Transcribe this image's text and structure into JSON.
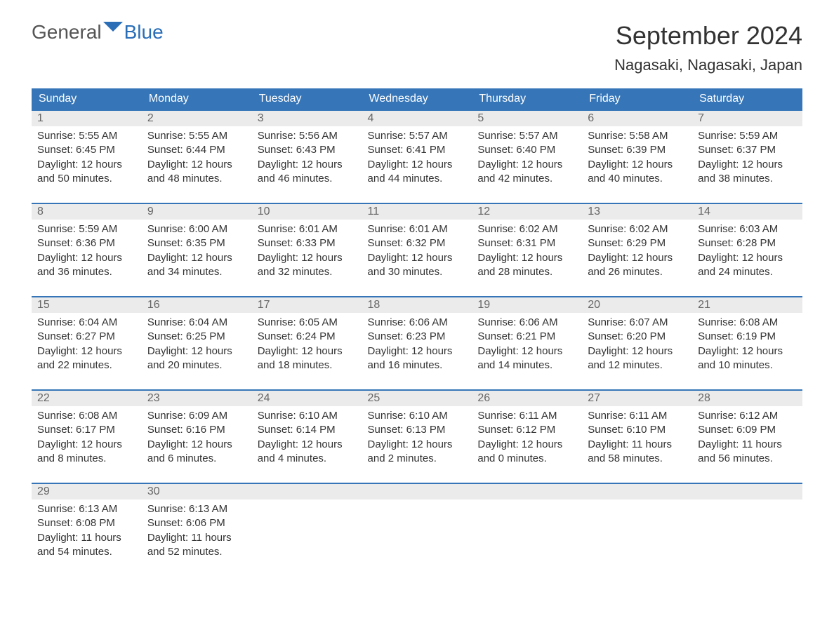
{
  "brand": {
    "t1": "General",
    "t2": "Blue",
    "icon_color": "#2a6eb8"
  },
  "title": "September 2024",
  "location": "Nagasaki, Nagasaki, Japan",
  "colors": {
    "header_bg": "#3676b8",
    "header_text": "#ffffff",
    "daynum_bg": "#ebebeb",
    "daynum_border": "#3676b8",
    "text": "#333333",
    "daynum_text": "#666666"
  },
  "day_headers": [
    "Sunday",
    "Monday",
    "Tuesday",
    "Wednesday",
    "Thursday",
    "Friday",
    "Saturday"
  ],
  "weeks": [
    [
      {
        "n": "1",
        "sr": "5:55 AM",
        "ss": "6:45 PM",
        "dh": "12",
        "dm": "50"
      },
      {
        "n": "2",
        "sr": "5:55 AM",
        "ss": "6:44 PM",
        "dh": "12",
        "dm": "48"
      },
      {
        "n": "3",
        "sr": "5:56 AM",
        "ss": "6:43 PM",
        "dh": "12",
        "dm": "46"
      },
      {
        "n": "4",
        "sr": "5:57 AM",
        "ss": "6:41 PM",
        "dh": "12",
        "dm": "44"
      },
      {
        "n": "5",
        "sr": "5:57 AM",
        "ss": "6:40 PM",
        "dh": "12",
        "dm": "42"
      },
      {
        "n": "6",
        "sr": "5:58 AM",
        "ss": "6:39 PM",
        "dh": "12",
        "dm": "40"
      },
      {
        "n": "7",
        "sr": "5:59 AM",
        "ss": "6:37 PM",
        "dh": "12",
        "dm": "38"
      }
    ],
    [
      {
        "n": "8",
        "sr": "5:59 AM",
        "ss": "6:36 PM",
        "dh": "12",
        "dm": "36"
      },
      {
        "n": "9",
        "sr": "6:00 AM",
        "ss": "6:35 PM",
        "dh": "12",
        "dm": "34"
      },
      {
        "n": "10",
        "sr": "6:01 AM",
        "ss": "6:33 PM",
        "dh": "12",
        "dm": "32"
      },
      {
        "n": "11",
        "sr": "6:01 AM",
        "ss": "6:32 PM",
        "dh": "12",
        "dm": "30"
      },
      {
        "n": "12",
        "sr": "6:02 AM",
        "ss": "6:31 PM",
        "dh": "12",
        "dm": "28"
      },
      {
        "n": "13",
        "sr": "6:02 AM",
        "ss": "6:29 PM",
        "dh": "12",
        "dm": "26"
      },
      {
        "n": "14",
        "sr": "6:03 AM",
        "ss": "6:28 PM",
        "dh": "12",
        "dm": "24"
      }
    ],
    [
      {
        "n": "15",
        "sr": "6:04 AM",
        "ss": "6:27 PM",
        "dh": "12",
        "dm": "22"
      },
      {
        "n": "16",
        "sr": "6:04 AM",
        "ss": "6:25 PM",
        "dh": "12",
        "dm": "20"
      },
      {
        "n": "17",
        "sr": "6:05 AM",
        "ss": "6:24 PM",
        "dh": "12",
        "dm": "18"
      },
      {
        "n": "18",
        "sr": "6:06 AM",
        "ss": "6:23 PM",
        "dh": "12",
        "dm": "16"
      },
      {
        "n": "19",
        "sr": "6:06 AM",
        "ss": "6:21 PM",
        "dh": "12",
        "dm": "14"
      },
      {
        "n": "20",
        "sr": "6:07 AM",
        "ss": "6:20 PM",
        "dh": "12",
        "dm": "12"
      },
      {
        "n": "21",
        "sr": "6:08 AM",
        "ss": "6:19 PM",
        "dh": "12",
        "dm": "10"
      }
    ],
    [
      {
        "n": "22",
        "sr": "6:08 AM",
        "ss": "6:17 PM",
        "dh": "12",
        "dm": "8"
      },
      {
        "n": "23",
        "sr": "6:09 AM",
        "ss": "6:16 PM",
        "dh": "12",
        "dm": "6"
      },
      {
        "n": "24",
        "sr": "6:10 AM",
        "ss": "6:14 PM",
        "dh": "12",
        "dm": "4"
      },
      {
        "n": "25",
        "sr": "6:10 AM",
        "ss": "6:13 PM",
        "dh": "12",
        "dm": "2"
      },
      {
        "n": "26",
        "sr": "6:11 AM",
        "ss": "6:12 PM",
        "dh": "12",
        "dm": "0"
      },
      {
        "n": "27",
        "sr": "6:11 AM",
        "ss": "6:10 PM",
        "dh": "11",
        "dm": "58"
      },
      {
        "n": "28",
        "sr": "6:12 AM",
        "ss": "6:09 PM",
        "dh": "11",
        "dm": "56"
      }
    ],
    [
      {
        "n": "29",
        "sr": "6:13 AM",
        "ss": "6:08 PM",
        "dh": "11",
        "dm": "54"
      },
      {
        "n": "30",
        "sr": "6:13 AM",
        "ss": "6:06 PM",
        "dh": "11",
        "dm": "52"
      },
      null,
      null,
      null,
      null,
      null
    ]
  ],
  "labels": {
    "sunrise": "Sunrise: ",
    "sunset": "Sunset: ",
    "daylight1": "Daylight: ",
    "daylight2": " hours",
    "daylight3": "and ",
    "daylight4": " minutes."
  }
}
